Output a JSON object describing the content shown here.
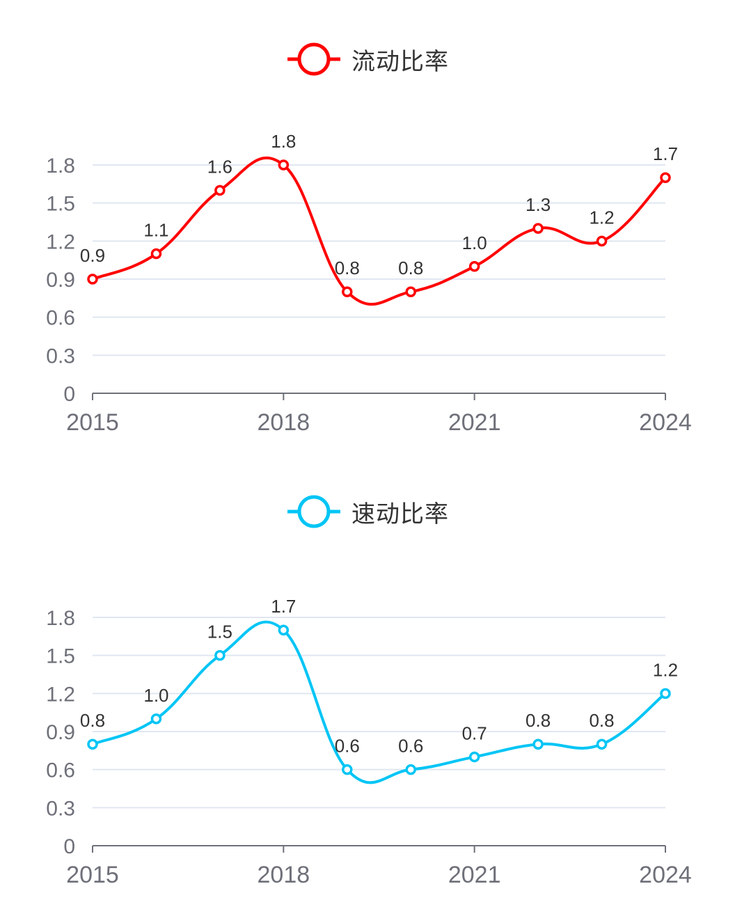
{
  "chart_data": [
    {
      "type": "line",
      "x": [
        "2015",
        "2016",
        "2017",
        "2018",
        "2019",
        "2020",
        "2021",
        "2022",
        "2023",
        "2024"
      ],
      "x_tick_labels": [
        "2015",
        "2018",
        "2021",
        "2024"
      ],
      "series": [
        {
          "name": "流动比率",
          "color": "#ff0000",
          "values": [
            0.9,
            1.1,
            1.6,
            1.8,
            0.8,
            0.8,
            1.0,
            1.3,
            1.2,
            1.7
          ]
        }
      ],
      "data_labels": [
        "0.9",
        "1.1",
        "1.6",
        "1.8",
        "0.8",
        "0.8",
        "1.0",
        "1.3",
        "1.2",
        "1.7"
      ],
      "y_ticks": [
        "0",
        "0.3",
        "0.6",
        "0.9",
        "1.2",
        "1.5",
        "1.8"
      ],
      "ylim": [
        0,
        1.8
      ],
      "smooth": true,
      "grid": true,
      "legend_position": "top-center"
    },
    {
      "type": "line",
      "x": [
        "2015",
        "2016",
        "2017",
        "2018",
        "2019",
        "2020",
        "2021",
        "2022",
        "2023",
        "2024"
      ],
      "x_tick_labels": [
        "2015",
        "2018",
        "2021",
        "2024"
      ],
      "series": [
        {
          "name": "速动比率",
          "color": "#00c5f5",
          "values": [
            0.8,
            1.0,
            1.5,
            1.7,
            0.6,
            0.6,
            0.7,
            0.8,
            0.8,
            1.2
          ]
        }
      ],
      "data_labels": [
        "0.8",
        "1.0",
        "1.5",
        "1.7",
        "0.6",
        "0.6",
        "0.7",
        "0.8",
        "0.8",
        "1.2"
      ],
      "y_ticks": [
        "0",
        "0.3",
        "0.6",
        "0.9",
        "1.2",
        "1.5",
        "1.8"
      ],
      "ylim": [
        0,
        1.8
      ],
      "smooth": true,
      "grid": true,
      "legend_position": "top-center"
    }
  ]
}
